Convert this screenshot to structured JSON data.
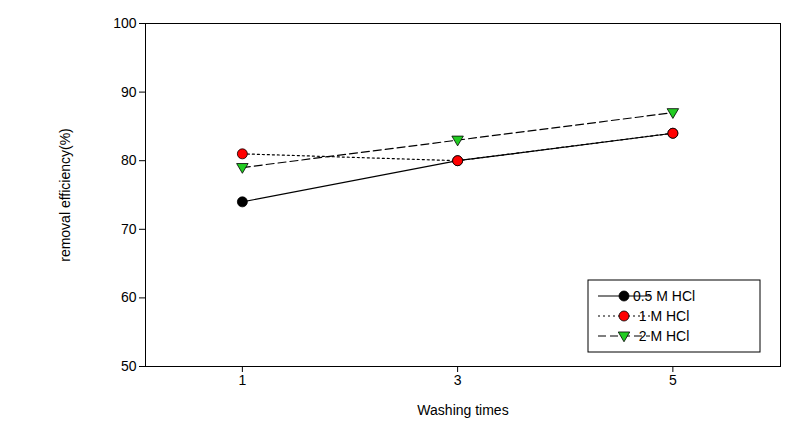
{
  "chart_data": {
    "type": "line",
    "x_label": "Washing times",
    "y_label": "removal efficiency(%)",
    "x": [
      1,
      3,
      5
    ],
    "xlim": [
      0.1,
      6
    ],
    "xticks": [
      1,
      3,
      5
    ],
    "ylim": [
      50,
      100
    ],
    "yticks": [
      50,
      60,
      70,
      80,
      90,
      100
    ],
    "grid": false,
    "legend": "bottom-right",
    "series": [
      {
        "name": "0.5 M HCl",
        "color": "#000000",
        "marker": "circle",
        "line_style": "solid",
        "values": [
          74,
          80,
          84
        ]
      },
      {
        "name": "1 M HCl",
        "color": "#ff0000",
        "marker": "circle",
        "line_style": "dotted",
        "values": [
          81,
          80,
          84
        ]
      },
      {
        "name": "2 M HCl",
        "color": "#22cc22",
        "marker": "triangle-down",
        "line_style": "dashed",
        "values": [
          79,
          83,
          87
        ]
      }
    ]
  }
}
